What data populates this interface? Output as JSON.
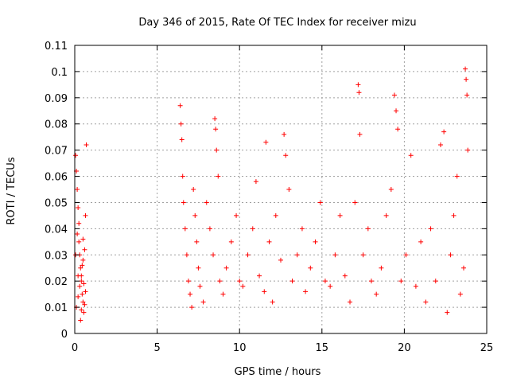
{
  "chart_data": {
    "type": "scatter",
    "title": "Day 346 of 2015, Rate Of TEC Index for receiver mizu",
    "xlabel": "GPS time / hours",
    "ylabel": "ROTI / TECUs",
    "xlim": [
      0,
      25
    ],
    "ylim": [
      0,
      0.11
    ],
    "xticks": [
      0,
      5,
      10,
      15,
      20,
      25
    ],
    "yticks": [
      0,
      0.01,
      0.02,
      0.03,
      0.04,
      0.05,
      0.06,
      0.07,
      0.08,
      0.09,
      0.1,
      0.11
    ],
    "grid": true,
    "marker": "plus",
    "color": "#ff0000",
    "series": [
      {
        "points": [
          [
            0.05,
            0.068
          ],
          [
            0.1,
            0.062
          ],
          [
            0.15,
            0.055
          ],
          [
            0.2,
            0.048
          ],
          [
            0.25,
            0.035
          ],
          [
            0.3,
            0.03
          ],
          [
            0.35,
            0.025
          ],
          [
            0.4,
            0.02
          ],
          [
            0.45,
            0.015
          ],
          [
            0.5,
            0.012
          ],
          [
            0.1,
            0.01
          ],
          [
            0.2,
            0.014
          ],
          [
            0.3,
            0.018
          ],
          [
            0.4,
            0.022
          ],
          [
            0.5,
            0.028
          ],
          [
            0.55,
            0.008
          ],
          [
            0.6,
            0.032
          ],
          [
            0.65,
            0.045
          ],
          [
            0.7,
            0.072
          ],
          [
            0.35,
            0.005
          ],
          [
            0.15,
            0.038
          ],
          [
            0.25,
            0.042
          ],
          [
            0.45,
            0.026
          ],
          [
            0.55,
            0.019
          ],
          [
            0.6,
            0.011
          ],
          [
            0.05,
            0.03
          ],
          [
            0.2,
            0.022
          ],
          [
            0.4,
            0.009
          ],
          [
            0.5,
            0.036
          ],
          [
            0.65,
            0.016
          ],
          [
            6.4,
            0.087
          ],
          [
            6.45,
            0.08
          ],
          [
            6.5,
            0.074
          ],
          [
            6.55,
            0.06
          ],
          [
            6.6,
            0.05
          ],
          [
            6.7,
            0.04
          ],
          [
            6.8,
            0.03
          ],
          [
            6.9,
            0.02
          ],
          [
            7.0,
            0.015
          ],
          [
            7.1,
            0.01
          ],
          [
            7.2,
            0.055
          ],
          [
            7.3,
            0.045
          ],
          [
            7.4,
            0.035
          ],
          [
            7.5,
            0.025
          ],
          [
            7.6,
            0.018
          ],
          [
            7.8,
            0.012
          ],
          [
            8.0,
            0.05
          ],
          [
            8.2,
            0.04
          ],
          [
            8.4,
            0.03
          ],
          [
            8.5,
            0.082
          ],
          [
            8.55,
            0.078
          ],
          [
            8.6,
            0.07
          ],
          [
            8.7,
            0.06
          ],
          [
            8.8,
            0.02
          ],
          [
            9.0,
            0.015
          ],
          [
            9.2,
            0.025
          ],
          [
            9.5,
            0.035
          ],
          [
            9.8,
            0.045
          ],
          [
            10.0,
            0.02
          ],
          [
            10.2,
            0.018
          ],
          [
            10.5,
            0.03
          ],
          [
            10.8,
            0.04
          ],
          [
            11.0,
            0.058
          ],
          [
            11.2,
            0.022
          ],
          [
            11.5,
            0.016
          ],
          [
            11.6,
            0.073
          ],
          [
            11.8,
            0.035
          ],
          [
            12.0,
            0.012
          ],
          [
            12.2,
            0.045
          ],
          [
            12.5,
            0.028
          ],
          [
            12.7,
            0.076
          ],
          [
            12.8,
            0.068
          ],
          [
            13.0,
            0.055
          ],
          [
            13.2,
            0.02
          ],
          [
            13.5,
            0.03
          ],
          [
            13.8,
            0.04
          ],
          [
            14.0,
            0.016
          ],
          [
            14.3,
            0.025
          ],
          [
            14.6,
            0.035
          ],
          [
            14.9,
            0.05
          ],
          [
            15.2,
            0.02
          ],
          [
            15.5,
            0.018
          ],
          [
            15.8,
            0.03
          ],
          [
            16.1,
            0.045
          ],
          [
            16.4,
            0.022
          ],
          [
            16.7,
            0.012
          ],
          [
            17.0,
            0.05
          ],
          [
            17.3,
            0.076
          ],
          [
            17.2,
            0.095
          ],
          [
            17.25,
            0.092
          ],
          [
            17.5,
            0.03
          ],
          [
            17.8,
            0.04
          ],
          [
            18.0,
            0.02
          ],
          [
            18.3,
            0.015
          ],
          [
            18.6,
            0.025
          ],
          [
            18.9,
            0.045
          ],
          [
            19.2,
            0.055
          ],
          [
            19.4,
            0.091
          ],
          [
            19.5,
            0.085
          ],
          [
            19.6,
            0.078
          ],
          [
            19.8,
            0.02
          ],
          [
            20.1,
            0.03
          ],
          [
            20.4,
            0.068
          ],
          [
            20.7,
            0.018
          ],
          [
            21.0,
            0.035
          ],
          [
            21.3,
            0.012
          ],
          [
            21.6,
            0.04
          ],
          [
            21.9,
            0.02
          ],
          [
            22.2,
            0.072
          ],
          [
            22.4,
            0.077
          ],
          [
            22.6,
            0.008
          ],
          [
            22.8,
            0.03
          ],
          [
            23.0,
            0.045
          ],
          [
            23.2,
            0.06
          ],
          [
            23.4,
            0.015
          ],
          [
            23.6,
            0.025
          ],
          [
            23.7,
            0.101
          ],
          [
            23.75,
            0.097
          ],
          [
            23.8,
            0.091
          ],
          [
            23.85,
            0.07
          ]
        ]
      }
    ]
  }
}
